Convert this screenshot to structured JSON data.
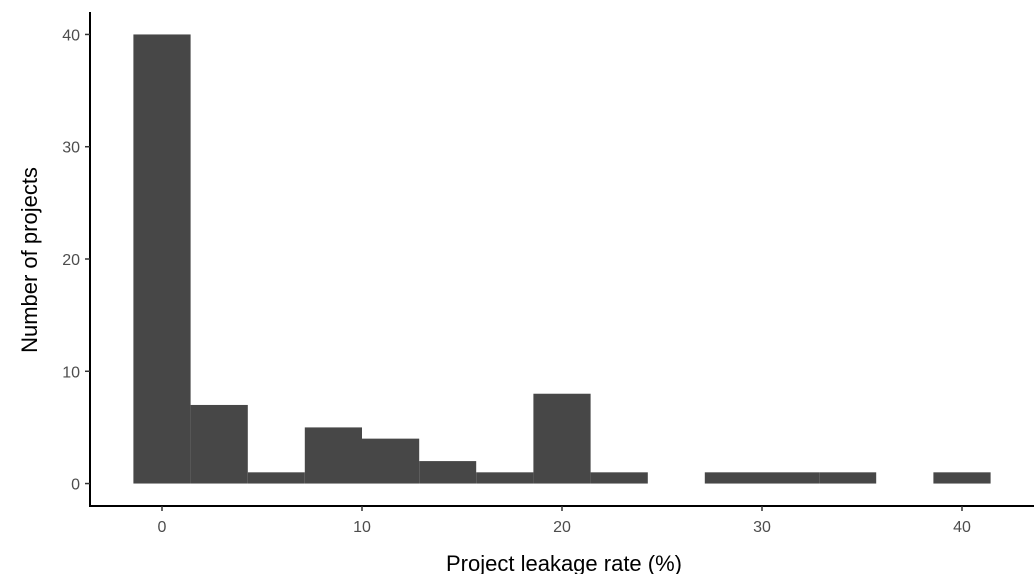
{
  "chart_data": {
    "type": "bar",
    "subtype": "histogram",
    "title": "",
    "xlabel": "Project leakage rate (%)",
    "ylabel": "Number of projects",
    "bin_width": 2.857,
    "bins": [
      {
        "x_start": -1.43,
        "x_end": 1.43,
        "count": 40
      },
      {
        "x_start": 1.43,
        "x_end": 4.29,
        "count": 7
      },
      {
        "x_start": 4.29,
        "x_end": 7.14,
        "count": 1
      },
      {
        "x_start": 7.14,
        "x_end": 10.0,
        "count": 5
      },
      {
        "x_start": 10.0,
        "x_end": 12.86,
        "count": 4
      },
      {
        "x_start": 12.86,
        "x_end": 15.71,
        "count": 2
      },
      {
        "x_start": 15.71,
        "x_end": 18.57,
        "count": 1
      },
      {
        "x_start": 18.57,
        "x_end": 21.43,
        "count": 8
      },
      {
        "x_start": 21.43,
        "x_end": 24.29,
        "count": 1
      },
      {
        "x_start": 24.29,
        "x_end": 27.14,
        "count": 0
      },
      {
        "x_start": 27.14,
        "x_end": 30.0,
        "count": 1
      },
      {
        "x_start": 30.0,
        "x_end": 32.86,
        "count": 1
      },
      {
        "x_start": 32.86,
        "x_end": 35.71,
        "count": 1
      },
      {
        "x_start": 35.71,
        "x_end": 38.57,
        "count": 0
      },
      {
        "x_start": 38.57,
        "x_end": 41.43,
        "count": 1
      }
    ],
    "xlim": [
      -3.6,
      43.6
    ],
    "ylim": [
      -2,
      42
    ],
    "xticks": [
      0,
      10,
      20,
      30,
      40
    ],
    "yticks": [
      0,
      10,
      20,
      30,
      40
    ],
    "bar_color": "#474747",
    "grid": false,
    "legend": "none"
  }
}
